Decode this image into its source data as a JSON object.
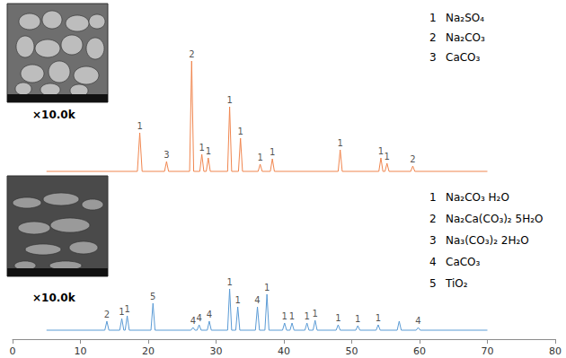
{
  "chart_data": [
    {
      "type": "line",
      "color": "#f0864f",
      "grid": false,
      "tick_labels": false,
      "xlim": [
        0,
        80
      ],
      "ylim": [
        0,
        140
      ],
      "x": [
        5,
        18.4,
        18.75,
        19.1,
        22.4,
        22.7,
        23.0,
        26.1,
        26.4,
        26.7,
        27.6,
        27.9,
        28.2,
        28.55,
        28.85,
        29.15,
        31.7,
        32.0,
        32.3,
        33.3,
        33.6,
        33.9,
        36.2,
        36.5,
        36.8,
        38.0,
        38.3,
        38.6,
        48.0,
        48.3,
        48.6,
        54.0,
        54.3,
        54.6,
        54.9,
        55.2,
        55.5,
        58.7,
        59.0,
        59.3,
        70
      ],
      "values": [
        2,
        2,
        45,
        2,
        2,
        13,
        2,
        2,
        125,
        2,
        2,
        21,
        2,
        2,
        17,
        2,
        2,
        74,
        2,
        2,
        39,
        2,
        2,
        10,
        2,
        2,
        16,
        2,
        2,
        26,
        2,
        2,
        17,
        2,
        2,
        11,
        2,
        2,
        8,
        2,
        2
      ],
      "peak_labels": {
        "x": [
          18.75,
          22.7,
          26.4,
          27.9,
          28.85,
          32.0,
          33.6,
          36.5,
          38.3,
          48.3,
          54.3,
          55.2,
          59.0
        ],
        "values": [
          45,
          13,
          125,
          21,
          17,
          74,
          39,
          10,
          16,
          26,
          17,
          11,
          8
        ],
        "labels": [
          "1",
          "3",
          "2",
          "1",
          "1",
          "1",
          "1",
          "1",
          "1",
          "1",
          "1",
          "1",
          "2"
        ]
      },
      "annotations": {
        "magnification": "×10.0k",
        "phases": [
          {
            "label": "1",
            "text": "Na₂SO₄"
          },
          {
            "label": "2",
            "text": "Na₂CO₃"
          },
          {
            "label": "3",
            "text": "CaCO₃"
          }
        ]
      }
    },
    {
      "type": "line",
      "color": "#5b9bd5",
      "grid": false,
      "tick_labels": "x",
      "xlim": [
        0,
        80
      ],
      "ylim": [
        0,
        140
      ],
      "xticks": [
        0,
        10,
        20,
        30,
        40,
        50,
        60,
        70,
        80
      ],
      "x": [
        5,
        13.6,
        13.9,
        14.2,
        15.8,
        16.1,
        16.4,
        16.6,
        16.9,
        17.2,
        20.4,
        20.7,
        21.0,
        26.3,
        26.6,
        26.9,
        27.2,
        27.5,
        27.8,
        28.7,
        29.0,
        29.3,
        31.7,
        32.0,
        32.3,
        32.9,
        33.2,
        33.5,
        35.8,
        36.1,
        36.4,
        37.2,
        37.5,
        37.8,
        39.8,
        40.1,
        40.4,
        40.9,
        41.2,
        41.5,
        43.1,
        43.4,
        43.7,
        44.3,
        44.6,
        44.9,
        47.7,
        48.0,
        48.3,
        50.6,
        50.9,
        51.2,
        53.6,
        53.9,
        54.2,
        56.7,
        57.0,
        57.3,
        59.5,
        59.8,
        60.1,
        70
      ],
      "values": [
        10,
        10,
        20,
        10,
        10,
        23,
        10,
        10,
        26,
        10,
        10,
        40,
        10,
        10,
        13,
        10,
        10,
        16,
        10,
        10,
        20,
        10,
        10,
        56,
        10,
        10,
        36,
        10,
        10,
        36,
        10,
        10,
        50,
        10,
        10,
        18,
        10,
        10,
        18,
        10,
        10,
        18,
        10,
        10,
        21,
        10,
        10,
        16,
        10,
        10,
        15,
        10,
        10,
        16,
        10,
        10,
        20,
        10,
        10,
        13,
        10,
        10
      ],
      "peak_labels": {
        "x": [
          13.9,
          16.1,
          16.9,
          20.7,
          26.6,
          27.5,
          29.0,
          32.0,
          33.2,
          36.1,
          37.5,
          40.1,
          41.2,
          43.4,
          44.6,
          48.0,
          50.9,
          53.9,
          59.8
        ],
        "values": [
          20,
          23,
          26,
          40,
          13,
          16,
          20,
          56,
          36,
          36,
          50,
          18,
          18,
          18,
          21,
          16,
          15,
          16,
          13
        ],
        "labels": [
          "2",
          "1",
          "1",
          "5",
          "4",
          "4",
          "4",
          "1",
          "1",
          "4",
          "1",
          "1",
          "1",
          "1",
          "1",
          "1",
          "1",
          "1",
          "4"
        ]
      },
      "annotations": {
        "magnification": "×10.0k",
        "phases": [
          {
            "label": "1",
            "text": "Na₂CO₃ H₂O"
          },
          {
            "label": "2",
            "text": "Na₂Ca(CO₃)₂ 5H₂O"
          },
          {
            "label": "3",
            "text": "Na₃(CO₃)₂ 2H₂O"
          },
          {
            "label": "4",
            "text": "CaCO₃"
          },
          {
            "label": "5",
            "text": "TiO₂"
          }
        ]
      }
    }
  ]
}
